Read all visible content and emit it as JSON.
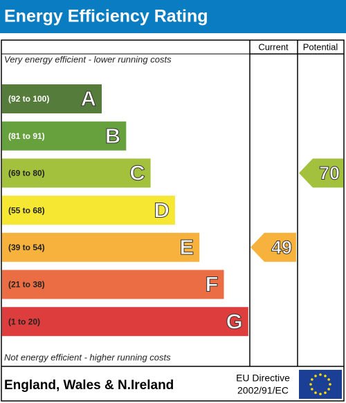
{
  "header": {
    "title": "Energy Efficiency Rating"
  },
  "columns": [
    "Current",
    "Potential"
  ],
  "top_note": "Very energy efficient - lower running costs",
  "bottom_note": "Not energy efficient - higher running costs",
  "bands": [
    {
      "range": "(92 to 100)",
      "letter": "A",
      "color": "#557c3a"
    },
    {
      "range": "(81 to 91)",
      "letter": "B",
      "color": "#67a13e"
    },
    {
      "range": "(69 to 80)",
      "letter": "C",
      "color": "#a3c13d"
    },
    {
      "range": "(55 to 68)",
      "letter": "D",
      "color": "#f6e733"
    },
    {
      "range": "(39 to 54)",
      "letter": "E",
      "color": "#f6b23c"
    },
    {
      "range": "(21 to 38)",
      "letter": "F",
      "color": "#ea6d44"
    },
    {
      "range": "(1 to 20)",
      "letter": "G",
      "color": "#dd3d3c"
    }
  ],
  "current": 49,
  "potential": 70,
  "footer": {
    "region": "England, Wales & N.Ireland",
    "directive": [
      "EU Directive",
      "2002/91/EC"
    ]
  }
}
